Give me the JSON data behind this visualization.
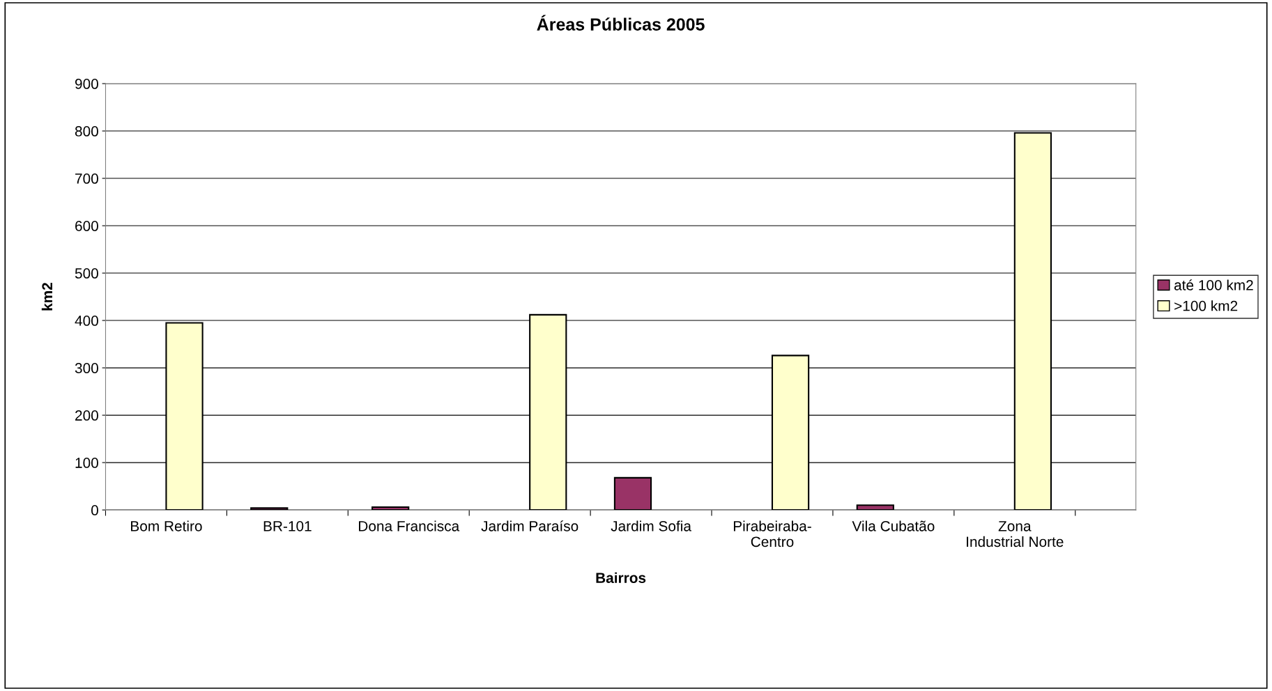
{
  "chart_data": {
    "type": "bar",
    "title": "Áreas Públicas 2005",
    "xlabel": "Bairros",
    "ylabel": "km2",
    "categories": [
      "Bom Retiro",
      "BR-101",
      "Dona Francisca",
      "Jardim Paraíso",
      "Jardim Sofia",
      "Pirabeiraba-Centro",
      "Vila Cubatão",
      "Zona Industrial Norte"
    ],
    "series": [
      {
        "name": "até 100 km2",
        "color": "#993366",
        "values": [
          null,
          4,
          6,
          null,
          68,
          null,
          10,
          null
        ]
      },
      {
        "name": ">100 km2",
        "color": "#ffffcc",
        "values": [
          395,
          null,
          null,
          412,
          null,
          326,
          null,
          796
        ]
      }
    ],
    "ylim": [
      0,
      900
    ],
    "yticks": [
      0,
      100,
      200,
      300,
      400,
      500,
      600,
      700,
      800,
      900
    ],
    "grid": "y",
    "legend": "right"
  }
}
